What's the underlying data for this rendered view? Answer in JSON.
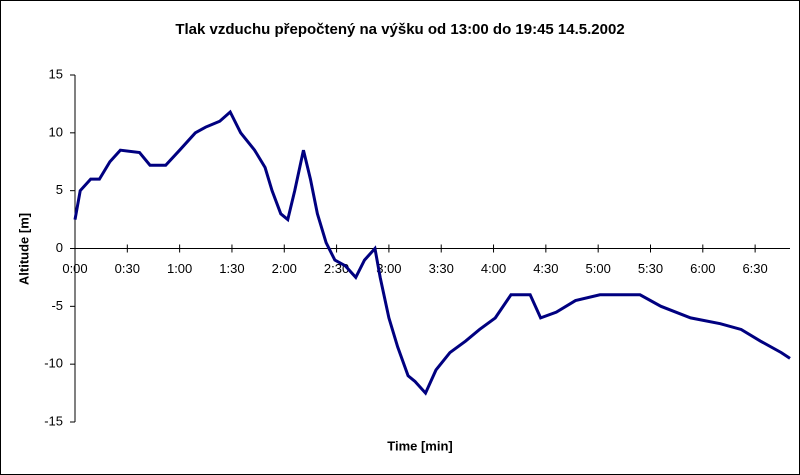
{
  "chart_data": {
    "type": "line",
    "title": "Tlak vzduchu přepočtený na výšku od 13:00 do 19:45 14.5.2002",
    "x_label": "Time [min]",
    "y_label": "Altitude [m]",
    "x": [
      0,
      3,
      9,
      14,
      20,
      26,
      37,
      43,
      52,
      60,
      69,
      75,
      83,
      89,
      95,
      103,
      109,
      113,
      118,
      122,
      126,
      131,
      135,
      139,
      144,
      149,
      155,
      161,
      166,
      172,
      175,
      180,
      185,
      191,
      195,
      201,
      207,
      215,
      224,
      232,
      241,
      250,
      261,
      267,
      276,
      287,
      301,
      324,
      336,
      353,
      370,
      382,
      393,
      405,
      410
    ],
    "series": [
      {
        "color": "#000080",
        "values": [
          2.5,
          5,
          6,
          6,
          7.5,
          8.5,
          8.3,
          7.2,
          7.2,
          8.5,
          10,
          10.5,
          11,
          11.8,
          10,
          8.5,
          7,
          5,
          3,
          2.5,
          5,
          8.5,
          6,
          3,
          0.5,
          -1,
          -1.5,
          -2.5,
          -1,
          0,
          -2.5,
          -6,
          -8.5,
          -11,
          -11.5,
          -12.5,
          -10.5,
          -9,
          -8,
          -7,
          -6,
          -4,
          -4,
          -6,
          -5.5,
          -4.5,
          -4,
          -4,
          -5,
          -6,
          -6.5,
          -7,
          -8,
          -9,
          -9.5
        ]
      }
    ],
    "xlim": [
      0,
      410
    ],
    "xticks": [
      {
        "value": 0,
        "label": "0:00"
      },
      {
        "value": 30,
        "label": "0:30"
      },
      {
        "value": 60,
        "label": "1:00"
      },
      {
        "value": 90,
        "label": "1:30"
      },
      {
        "value": 120,
        "label": "2:00"
      },
      {
        "value": 150,
        "label": "2:30"
      },
      {
        "value": 180,
        "label": "3:00"
      },
      {
        "value": 210,
        "label": "3:30"
      },
      {
        "value": 240,
        "label": "4:00"
      },
      {
        "value": 270,
        "label": "4:30"
      },
      {
        "value": 300,
        "label": "5:00"
      },
      {
        "value": 330,
        "label": "5:30"
      },
      {
        "value": 360,
        "label": "6:00"
      },
      {
        "value": 390,
        "label": "6:30"
      }
    ],
    "ylim": [
      -15,
      15
    ],
    "yticks": [
      15,
      10,
      5,
      0,
      -5,
      -10,
      -15
    ],
    "grid": false
  }
}
